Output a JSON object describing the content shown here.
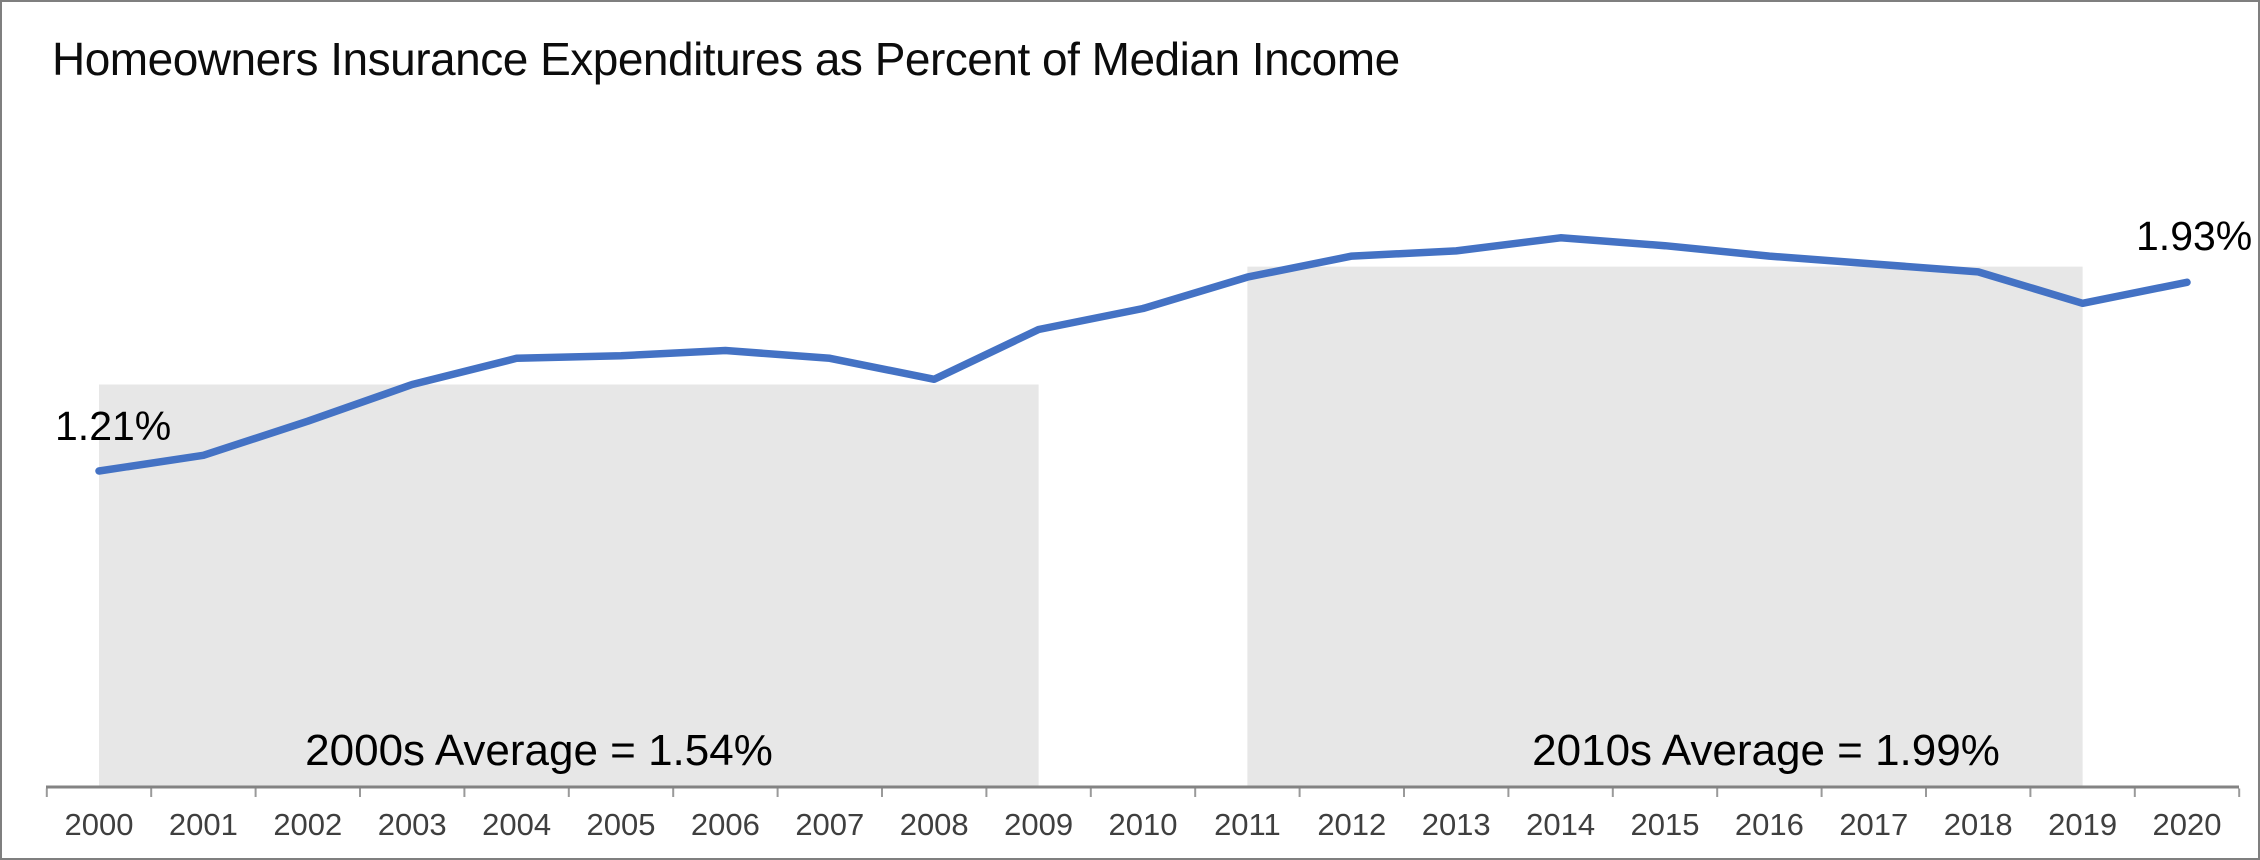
{
  "chart_data": {
    "type": "line",
    "title": "Homeowners Insurance Expenditures as Percent of Median Income",
    "x": [
      "2000",
      "2001",
      "2002",
      "2003",
      "2004",
      "2005",
      "2006",
      "2007",
      "2008",
      "2009",
      "2010",
      "2011",
      "2012",
      "2013",
      "2014",
      "2015",
      "2016",
      "2017",
      "2018",
      "2019",
      "2020"
    ],
    "values": [
      1.21,
      1.27,
      1.4,
      1.54,
      1.64,
      1.65,
      1.67,
      1.64,
      1.56,
      1.75,
      1.83,
      1.95,
      2.03,
      2.05,
      2.1,
      2.07,
      2.03,
      2.0,
      1.97,
      1.85,
      1.93
    ],
    "unit": "%",
    "ylim": [
      0,
      2.6
    ],
    "grid": false,
    "legend": "none",
    "line_color": "#4472C4",
    "band_fill": "#E7E7E7",
    "axis_color": "#838383",
    "tick_color": "#9a9a9a",
    "x_label_color": "#3f3f3f",
    "point_labels": {
      "first": "1.21%",
      "last": "1.93%"
    },
    "bands": [
      {
        "label": "2000s Average = 1.54%",
        "value": 1.54,
        "from": "2000",
        "to": "2009"
      },
      {
        "label": "2010s Average = 1.99%",
        "value": 1.99,
        "from": "2011",
        "to": "2019"
      }
    ]
  }
}
